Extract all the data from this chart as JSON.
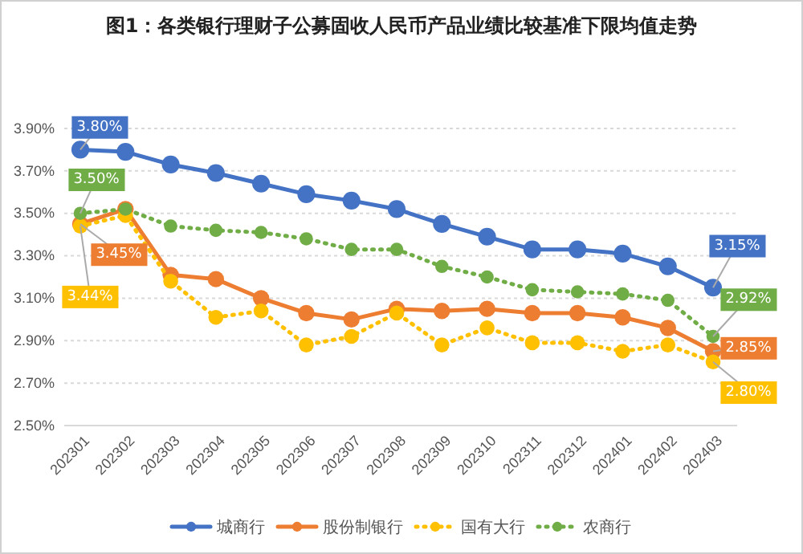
{
  "chart_data": {
    "type": "line",
    "title": "图1：各类银行理财子公募固收人民币产品业绩比较基准下限均值走势",
    "categories": [
      "202301",
      "202302",
      "202303",
      "202304",
      "202305",
      "202306",
      "202307",
      "202308",
      "202309",
      "202310",
      "202311",
      "202312",
      "202401",
      "202402",
      "202403"
    ],
    "series": [
      {
        "name": "城商行",
        "color": "#4472c4",
        "line_style": "solid",
        "values": [
          3.8,
          3.79,
          3.73,
          3.69,
          3.64,
          3.59,
          3.56,
          3.52,
          3.45,
          3.39,
          3.33,
          3.33,
          3.31,
          3.25,
          3.15
        ],
        "value_labels": [
          "3.80%",
          null,
          null,
          null,
          null,
          null,
          null,
          null,
          null,
          null,
          null,
          null,
          null,
          null,
          "3.15%"
        ]
      },
      {
        "name": "股份制银行",
        "color": "#ed7d31",
        "line_style": "solid",
        "values": [
          3.45,
          3.52,
          3.21,
          3.19,
          3.1,
          3.03,
          3.0,
          3.05,
          3.04,
          3.05,
          3.03,
          3.03,
          3.01,
          2.96,
          2.85
        ],
        "value_labels": [
          "3.45%",
          null,
          null,
          null,
          null,
          null,
          null,
          null,
          null,
          null,
          null,
          null,
          null,
          null,
          "2.85%"
        ]
      },
      {
        "name": "国有大行",
        "color": "#ffc000",
        "line_style": "dotted",
        "values": [
          3.44,
          3.49,
          3.18,
          3.01,
          3.04,
          2.88,
          2.92,
          3.03,
          2.88,
          2.96,
          2.89,
          2.89,
          2.85,
          2.88,
          2.8
        ],
        "value_labels": [
          "3.44%",
          null,
          null,
          null,
          null,
          null,
          null,
          null,
          null,
          null,
          null,
          null,
          null,
          null,
          "2.80%"
        ]
      },
      {
        "name": "农商行",
        "color": "#70ad47",
        "line_style": "dotted",
        "values": [
          3.5,
          3.52,
          3.44,
          3.42,
          3.41,
          3.38,
          3.33,
          3.33,
          3.25,
          3.2,
          3.14,
          3.13,
          3.12,
          3.09,
          2.92
        ],
        "value_labels": [
          "3.50%",
          null,
          null,
          null,
          null,
          null,
          null,
          null,
          null,
          null,
          null,
          null,
          null,
          null,
          "2.92%"
        ]
      }
    ],
    "ylim": [
      2.5,
      3.9
    ],
    "yticks": [
      {
        "value": 2.5,
        "label": "2.50%"
      },
      {
        "value": 2.7,
        "label": "2.70%"
      },
      {
        "value": 2.9,
        "label": "2.90%"
      },
      {
        "value": 3.1,
        "label": "3.10%"
      },
      {
        "value": 3.3,
        "label": "3.30%"
      },
      {
        "value": 3.5,
        "label": "3.50%"
      },
      {
        "value": 3.7,
        "label": "3.70%"
      },
      {
        "value": 3.9,
        "label": "3.90%"
      }
    ],
    "grid": "y",
    "legend": "bottom",
    "marker": "circle"
  }
}
